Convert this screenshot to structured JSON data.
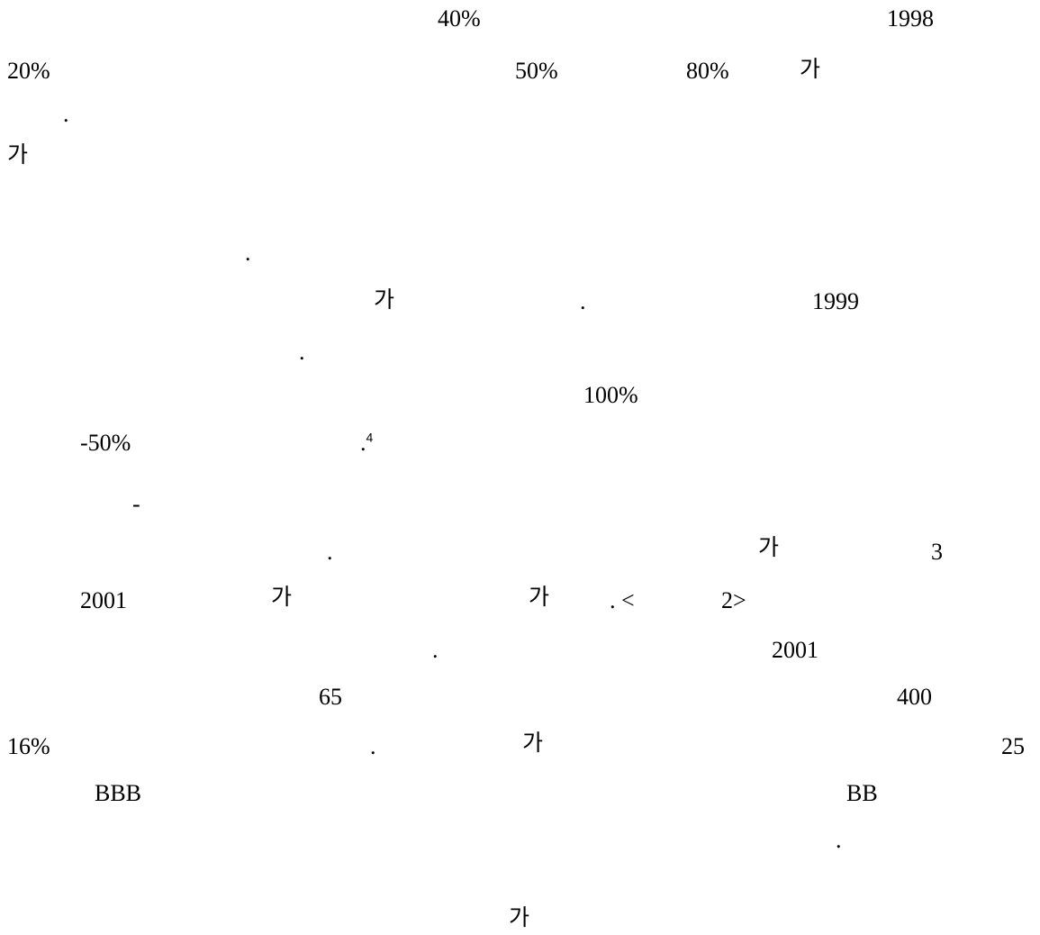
{
  "fragments": {
    "f01": "40%",
    "f02": "1998",
    "f03": "20%",
    "f04": "50%",
    "f05": "80%",
    "f06": "가",
    "f07": ".",
    "f08": "가",
    "f09": ".",
    "f10": "가",
    "f11": ".",
    "f12": "1999",
    "f13": ".",
    "f14": "100%",
    "f15": "-50%",
    "f16": ".",
    "f16_note": "4",
    "f17": "-",
    "f18": ".",
    "f19": "가",
    "f20": "3",
    "f21": "2001",
    "f22": "가",
    "f23": "가",
    "f24": ". <",
    "f25": "2>",
    "f26": ".",
    "f27": "2001",
    "f28": "65",
    "f29": "400",
    "f30": "16%",
    "f31": ".",
    "f32": "가",
    "f33": "25",
    "f34": "BBB",
    "f35": "BB",
    "f36": ".",
    "f37": "가"
  }
}
